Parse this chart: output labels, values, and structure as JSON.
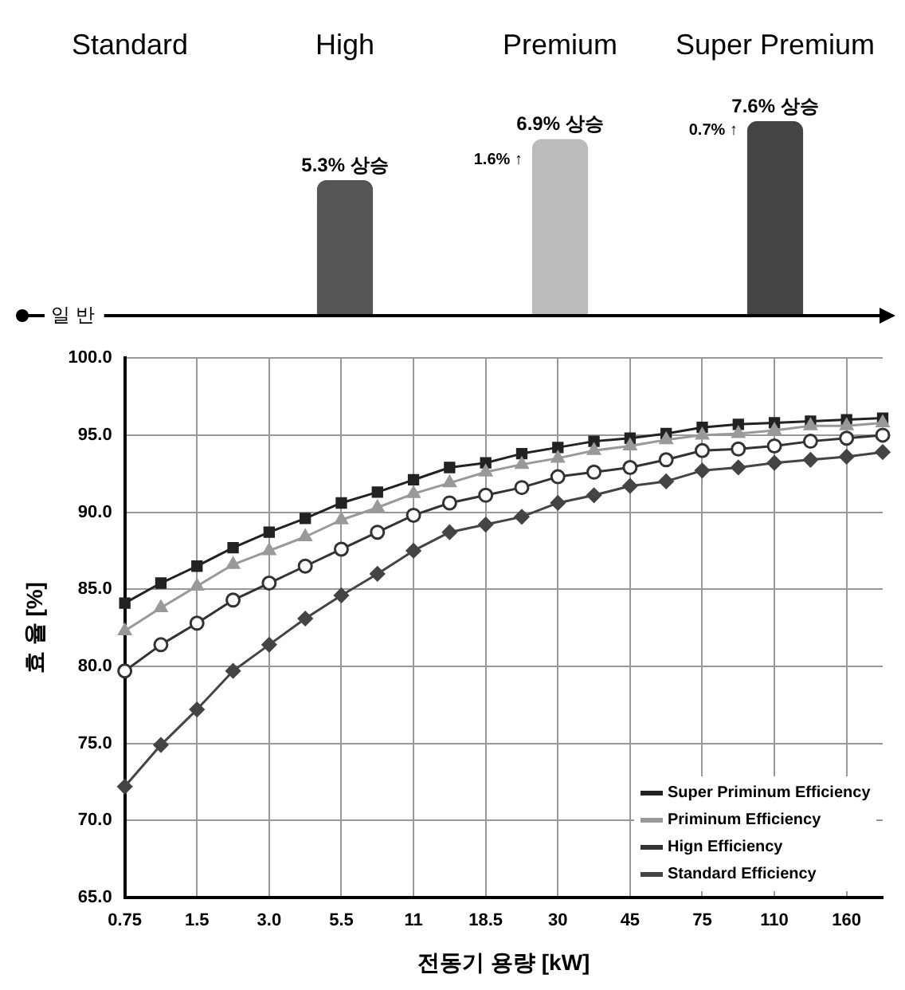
{
  "chart_data": [
    {
      "type": "bar",
      "categories": [
        "Standard",
        "High",
        "Premium",
        "Super Premium"
      ],
      "values": [
        null,
        5.3,
        6.9,
        7.6
      ],
      "colors": [
        "#000000",
        "#555555",
        "#bbbbbb",
        "#444444"
      ],
      "value_labels": [
        null,
        "5.3% 상승",
        "6.9% 상승",
        "7.6% 상승"
      ],
      "annotations": [
        "1.6% ↑",
        "0.7% ↑",
        "일 반"
      ],
      "grid": false,
      "legend": false
    },
    {
      "type": "line",
      "xlabel": "전동기 용량 [kW]",
      "ylabel": "효 율 [%]",
      "categories": [
        "0.75",
        null,
        "1.5",
        null,
        "3.0",
        null,
        "5.5",
        null,
        "11",
        null,
        "18.5",
        null,
        "30",
        null,
        "45",
        null,
        "75",
        null,
        "110",
        null,
        "160",
        null
      ],
      "ylim": [
        65,
        100
      ],
      "yticks": [
        {
          "value": 65,
          "label": "65.0"
        },
        {
          "value": 70,
          "label": "70.0"
        },
        {
          "value": 75,
          "label": "75.0"
        },
        {
          "value": 80,
          "label": "80.0"
        },
        {
          "value": 85,
          "label": "85.0"
        },
        {
          "value": 90,
          "label": "90.0"
        },
        {
          "value": 95,
          "label": "95.0"
        },
        {
          "value": 100,
          "label": "100.0"
        }
      ],
      "grid": true,
      "legend": "bottom right",
      "series": [
        {
          "name": "Super Priminum Efficiency",
          "color": "#222222",
          "marker": "square",
          "values": [
            84.1,
            85.4,
            86.5,
            87.7,
            88.7,
            89.6,
            90.6,
            91.3,
            92.1,
            92.9,
            93.2,
            93.8,
            94.2,
            94.6,
            94.8,
            95.1,
            95.5,
            95.7,
            95.8,
            95.9,
            96.0,
            96.1
          ]
        },
        {
          "name": "Priminum Efficiency",
          "color": "#999999",
          "marker": "triangle",
          "values": [
            82.3,
            83.8,
            85.2,
            86.6,
            87.5,
            88.4,
            89.5,
            90.3,
            91.2,
            91.9,
            92.6,
            93.1,
            93.5,
            94.0,
            94.3,
            94.7,
            95.0,
            95.1,
            95.3,
            95.6,
            95.6,
            95.8
          ]
        },
        {
          "name": "Hign Efficiency",
          "color": "#333333",
          "marker": "circle",
          "values": [
            79.7,
            81.4,
            82.8,
            84.3,
            85.4,
            86.5,
            87.6,
            88.7,
            89.8,
            90.6,
            91.1,
            91.6,
            92.3,
            92.6,
            92.9,
            93.4,
            94.0,
            94.1,
            94.3,
            94.6,
            94.8,
            95.0
          ]
        },
        {
          "name": "Standard Efficiency",
          "color": "#444444",
          "marker": "diamond",
          "values": [
            72.2,
            74.9,
            77.2,
            79.7,
            81.4,
            83.1,
            84.6,
            86.0,
            87.5,
            88.7,
            89.2,
            89.7,
            90.6,
            91.1,
            91.7,
            92.0,
            92.7,
            92.9,
            93.2,
            93.4,
            93.6,
            93.9
          ]
        }
      ]
    }
  ]
}
